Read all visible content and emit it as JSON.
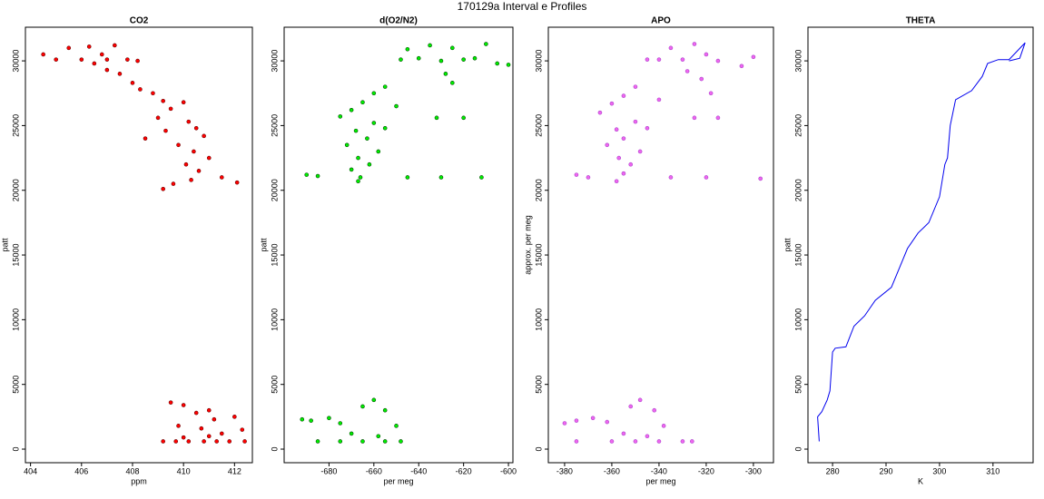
{
  "title": "170129a   Interval e Profiles",
  "chart_data": [
    {
      "type": "scatter",
      "title": "CO2",
      "xlabel": "ppm",
      "ylabel": "patt",
      "color": "#ff0000",
      "edgecolor": "#660000",
      "xlim": [
        403.8,
        412.7
      ],
      "ylim": [
        -1050,
        32600
      ],
      "xticks": [
        404,
        406,
        408,
        410,
        412
      ],
      "yticks": [
        0,
        5000,
        10000,
        15000,
        20000,
        25000,
        30000
      ],
      "x": [
        404.5,
        405,
        405.5,
        406,
        406.3,
        406.8,
        407,
        407.3,
        407.8,
        408.2,
        406.5,
        407,
        407.5,
        408,
        408.3,
        408.8,
        409.2,
        409.5,
        410,
        409,
        410.2,
        410.5,
        409.3,
        410.8,
        408.5,
        409.8,
        410.4,
        411,
        410.1,
        410.6,
        411.5,
        409.6,
        409.2,
        410.3,
        412.1,
        409.5,
        410,
        410.5,
        411,
        411.2,
        412,
        409.8,
        410.7,
        411.5,
        412.3,
        409.2,
        409.7,
        410.2,
        410.8,
        411.3,
        411.8,
        412.4,
        410,
        411
      ],
      "values": [
        30500,
        30100,
        31000,
        30100,
        31100,
        30500,
        30100,
        31200,
        30100,
        30000,
        29800,
        29300,
        29000,
        28300,
        27800,
        27500,
        26900,
        26300,
        26800,
        25600,
        25300,
        24800,
        24600,
        24200,
        24000,
        23500,
        23000,
        22500,
        22000,
        21500,
        21000,
        20500,
        20100,
        20800,
        20600,
        3600,
        3400,
        2800,
        3000,
        2300,
        2500,
        1800,
        1600,
        1200,
        1500,
        600,
        600,
        600,
        600,
        600,
        600,
        600,
        900,
        1000
      ]
    },
    {
      "type": "scatter",
      "title": "d(O2/N2)",
      "xlabel": "per meg",
      "ylabel": "patt",
      "color": "#00ee00",
      "edgecolor": "#004400",
      "xlim": [
        -700,
        -598
      ],
      "ylim": [
        -1050,
        32600
      ],
      "xticks": [
        -680,
        -660,
        -640,
        -620,
        -600
      ],
      "yticks": [
        0,
        5000,
        10000,
        15000,
        20000,
        25000,
        30000
      ],
      "x": [
        -648,
        -640,
        -635,
        -630,
        -625,
        -620,
        -615,
        -610,
        -605,
        -600,
        -645,
        -628,
        -625,
        -655,
        -660,
        -665,
        -670,
        -650,
        -675,
        -660,
        -668,
        -655,
        -663,
        -672,
        -658,
        -667,
        -662,
        -670,
        -666,
        -667,
        -690,
        -685,
        -645,
        -630,
        -612,
        -632,
        -620,
        -692,
        -688,
        -680,
        -675,
        -665,
        -660,
        -655,
        -650,
        -670,
        -658,
        -685,
        -675,
        -665,
        -655,
        -648
      ],
      "values": [
        30100,
        30200,
        31200,
        30000,
        31000,
        30100,
        30200,
        31300,
        29800,
        29700,
        30900,
        29000,
        28300,
        28000,
        27500,
        26800,
        26200,
        26500,
        25700,
        25200,
        24600,
        24800,
        24000,
        23500,
        23000,
        22500,
        22000,
        21600,
        21000,
        20700,
        21200,
        21100,
        21000,
        21000,
        21000,
        25600,
        25600,
        2300,
        2200,
        2400,
        2000,
        3300,
        3800,
        3000,
        1800,
        1200,
        1000,
        600,
        600,
        600,
        600,
        600
      ]
    },
    {
      "type": "scatter",
      "title": "APO",
      "xlabel": "per meg",
      "ylabel": "approx. per meg",
      "color": "#ee66ee",
      "edgecolor": "#aa44cc",
      "xlim": [
        -386.9,
        -291.5
      ],
      "ylim": [
        -1050,
        32600
      ],
      "xticks": [
        -380,
        -360,
        -340,
        -320,
        -300
      ],
      "yticks": [
        0,
        5000,
        10000,
        15000,
        20000,
        25000,
        30000
      ],
      "x": [
        -340,
        -335,
        -330,
        -325,
        -320,
        -315,
        -305,
        -300,
        -345,
        -328,
        -322,
        -318,
        -350,
        -355,
        -360,
        -340,
        -365,
        -350,
        -358,
        -345,
        -355,
        -362,
        -348,
        -357,
        -352,
        -355,
        -358,
        -375,
        -370,
        -335,
        -320,
        -297,
        -325,
        -315,
        -380,
        -375,
        -368,
        -362,
        -352,
        -348,
        -342,
        -338,
        -355,
        -345,
        -375,
        -360,
        -350,
        -340,
        -330,
        -326
      ],
      "values": [
        30100,
        31000,
        30100,
        31300,
        30500,
        30000,
        29600,
        30300,
        30100,
        29200,
        28600,
        27500,
        28000,
        27300,
        26700,
        27000,
        26000,
        25300,
        24700,
        24800,
        24000,
        23500,
        23000,
        22500,
        22000,
        21300,
        20700,
        21200,
        21000,
        21000,
        21000,
        20900,
        25600,
        25600,
        2000,
        2200,
        2400,
        2100,
        3300,
        3800,
        3000,
        1800,
        1200,
        1000,
        600,
        600,
        600,
        600,
        600,
        600
      ]
    },
    {
      "type": "line",
      "title": "THETA",
      "xlabel": "K",
      "ylabel": "patt",
      "color": "#0000ee",
      "xlim": [
        275.4,
        317.5
      ],
      "ylim": [
        -1050,
        32600
      ],
      "xticks": [
        280,
        290,
        300,
        310
      ],
      "yticks": [
        0,
        5000,
        10000,
        15000,
        20000,
        25000,
        30000
      ],
      "x": [
        277.5,
        277.2,
        278,
        279,
        279.5,
        280,
        280.5,
        282.5,
        284,
        286,
        288,
        291,
        293,
        294,
        296,
        298,
        300,
        301,
        301.5,
        302,
        303,
        306,
        308,
        309,
        311,
        313,
        316,
        315,
        313
      ],
      "values": [
        600,
        2500,
        2900,
        3800,
        4500,
        7500,
        7800,
        7900,
        9500,
        10300,
        11500,
        12500,
        14500,
        15500,
        16700,
        17500,
        19500,
        22000,
        22500,
        25000,
        27000,
        27700,
        28800,
        29800,
        30100,
        30100,
        31400,
        30200,
        30000
      ]
    }
  ]
}
